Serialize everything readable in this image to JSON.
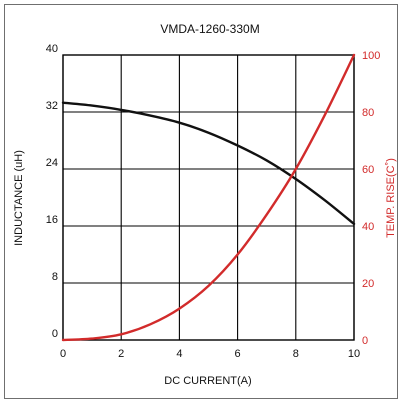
{
  "chart_data": {
    "type": "line",
    "title": "VMDA-1260-330M",
    "xlabel": "DC CURRENT(A)",
    "ylabel_left": "INDUCTANCE (uH)",
    "ylabel_right": "TEMP. RISE(C˚)",
    "xlim": [
      0,
      10
    ],
    "ylim_left": [
      0,
      40
    ],
    "ylim_right": [
      0,
      100
    ],
    "x_ticks": [
      "0",
      "2",
      "4",
      "6",
      "8",
      "10"
    ],
    "y_left_ticks": [
      "0",
      "8",
      "16",
      "24",
      "32",
      "40"
    ],
    "y_right_ticks": [
      "0",
      "20",
      "40",
      "60",
      "80",
      "100"
    ],
    "grid": true,
    "colors": {
      "inductance": "#111111",
      "temp_rise": "#d22b2b",
      "grid": "#000000"
    },
    "series": [
      {
        "axis": "left",
        "color": "#111111",
        "x": [
          0,
          1,
          2,
          3,
          4,
          5,
          6,
          7,
          8,
          9,
          10
        ],
        "values": [
          33.3,
          32.9,
          32.3,
          31.5,
          30.5,
          29.1,
          27.3,
          25.2,
          22.6,
          19.6,
          16.3
        ]
      },
      {
        "axis": "right",
        "color": "#d22b2b",
        "x": [
          0,
          1,
          2,
          3,
          4,
          5,
          6,
          7,
          8,
          9,
          10
        ],
        "values": [
          0,
          0.5,
          2,
          5.5,
          11,
          19,
          30,
          44,
          60,
          79,
          100
        ]
      }
    ]
  }
}
